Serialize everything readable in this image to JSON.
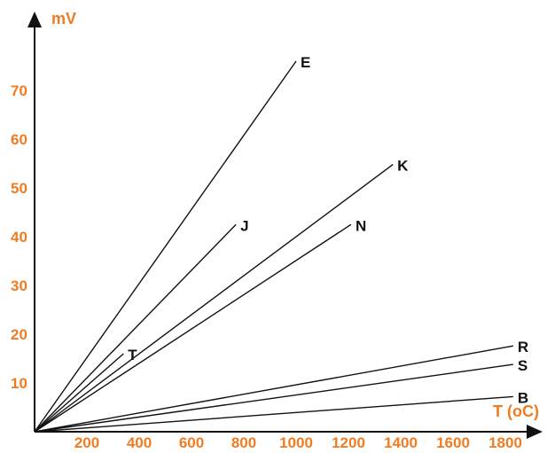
{
  "chart_data": {
    "type": "line",
    "title": "",
    "xlabel": "T (oC)",
    "ylabel": "mV",
    "xlim": [
      0,
      1800
    ],
    "ylim": [
      0,
      77
    ],
    "x_ticks": [
      200,
      400,
      600,
      800,
      1000,
      1200,
      1400,
      1600,
      1800
    ],
    "y_ticks": [
      10,
      20,
      30,
      40,
      50,
      60,
      70
    ],
    "grid": false,
    "legend": "none",
    "series": [
      {
        "name": "E",
        "x": [
          0,
          1000
        ],
        "y": [
          0,
          76
        ]
      },
      {
        "name": "J",
        "x": [
          0,
          770
        ],
        "y": [
          0,
          42.5
        ]
      },
      {
        "name": "T",
        "x": [
          0,
          340
        ],
        "y": [
          0,
          16
        ]
      },
      {
        "name": "K",
        "x": [
          0,
          1370
        ],
        "y": [
          0,
          54.8
        ]
      },
      {
        "name": "N",
        "x": [
          0,
          1210
        ],
        "y": [
          0,
          42.5
        ]
      },
      {
        "name": "R",
        "x": [
          0,
          1830
        ],
        "y": [
          0,
          17.6
        ]
      },
      {
        "name": "S",
        "x": [
          0,
          1830
        ],
        "y": [
          0,
          13.8
        ]
      },
      {
        "name": "B",
        "x": [
          0,
          1830
        ],
        "y": [
          0,
          7.2
        ]
      }
    ]
  }
}
